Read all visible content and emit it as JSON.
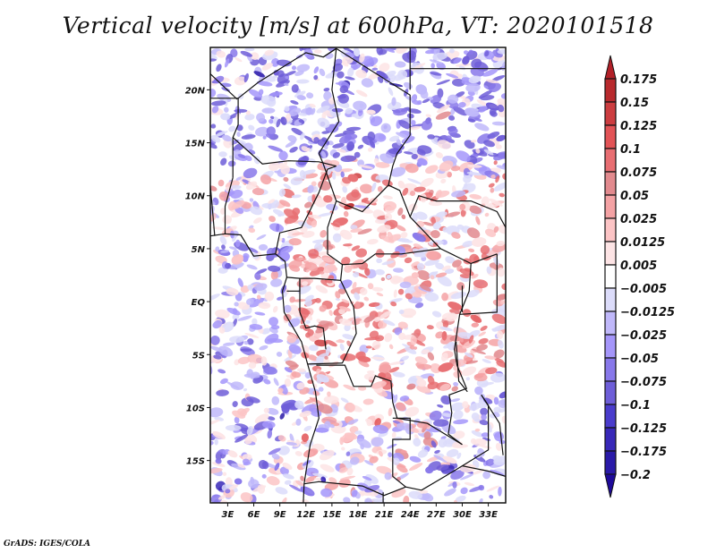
{
  "title": "Vertical velocity [m/s] at 600hPa, VT: 2020101518",
  "footer": "GrADS: IGES/COLA",
  "map": {
    "variable": "Vertical velocity",
    "units": "m/s",
    "level": "600hPa",
    "valid_time": "2020101518",
    "region": "Central Africa",
    "lon_range": [
      1,
      35
    ],
    "lat_range": [
      -19,
      24
    ],
    "x_ticks": [
      {
        "lon": 3,
        "label": "3E"
      },
      {
        "lon": 6,
        "label": "6E"
      },
      {
        "lon": 9,
        "label": "9E"
      },
      {
        "lon": 12,
        "label": "12E"
      },
      {
        "lon": 15,
        "label": "15E"
      },
      {
        "lon": 18,
        "label": "18E"
      },
      {
        "lon": 21,
        "label": "21E"
      },
      {
        "lon": 24,
        "label": "24E"
      },
      {
        "lon": 27,
        "label": "27E"
      },
      {
        "lon": 30,
        "label": "30E"
      },
      {
        "lon": 33,
        "label": "33E"
      }
    ],
    "y_ticks": [
      {
        "lat": 20,
        "label": "20N"
      },
      {
        "lat": 15,
        "label": "15N"
      },
      {
        "lat": 10,
        "label": "10N"
      },
      {
        "lat": 5,
        "label": "5N"
      },
      {
        "lat": 0,
        "label": "EQ"
      },
      {
        "lat": -5,
        "label": "5S"
      },
      {
        "lat": -10,
        "label": "10S"
      },
      {
        "lat": -15,
        "label": "15S"
      }
    ]
  },
  "colorbar": {
    "labels": [
      "0.175",
      "0.15",
      "0.125",
      "0.1",
      "0.075",
      "0.05",
      "0.025",
      "0.0125",
      "0.005",
      "−0.005",
      "−0.0125",
      "−0.025",
      "−0.05",
      "−0.075",
      "−0.1",
      "−0.125",
      "−0.175",
      "−0.2"
    ],
    "top_arrow_color": "#b22028",
    "bottom_arrow_color": "#1e0a9a",
    "boxes": [
      "#b82a2e",
      "#cc3d40",
      "#e25356",
      "#e86e72",
      "#e28a8e",
      "#f4a2a4",
      "#fcc4c5",
      "#fde4e5",
      "#ffffff",
      "#dcdcfa",
      "#c0b8fa",
      "#a596fa",
      "#8878ea",
      "#6e5ed8",
      "#4a3ccc",
      "#3828b8",
      "#2a1aa8"
    ]
  }
}
